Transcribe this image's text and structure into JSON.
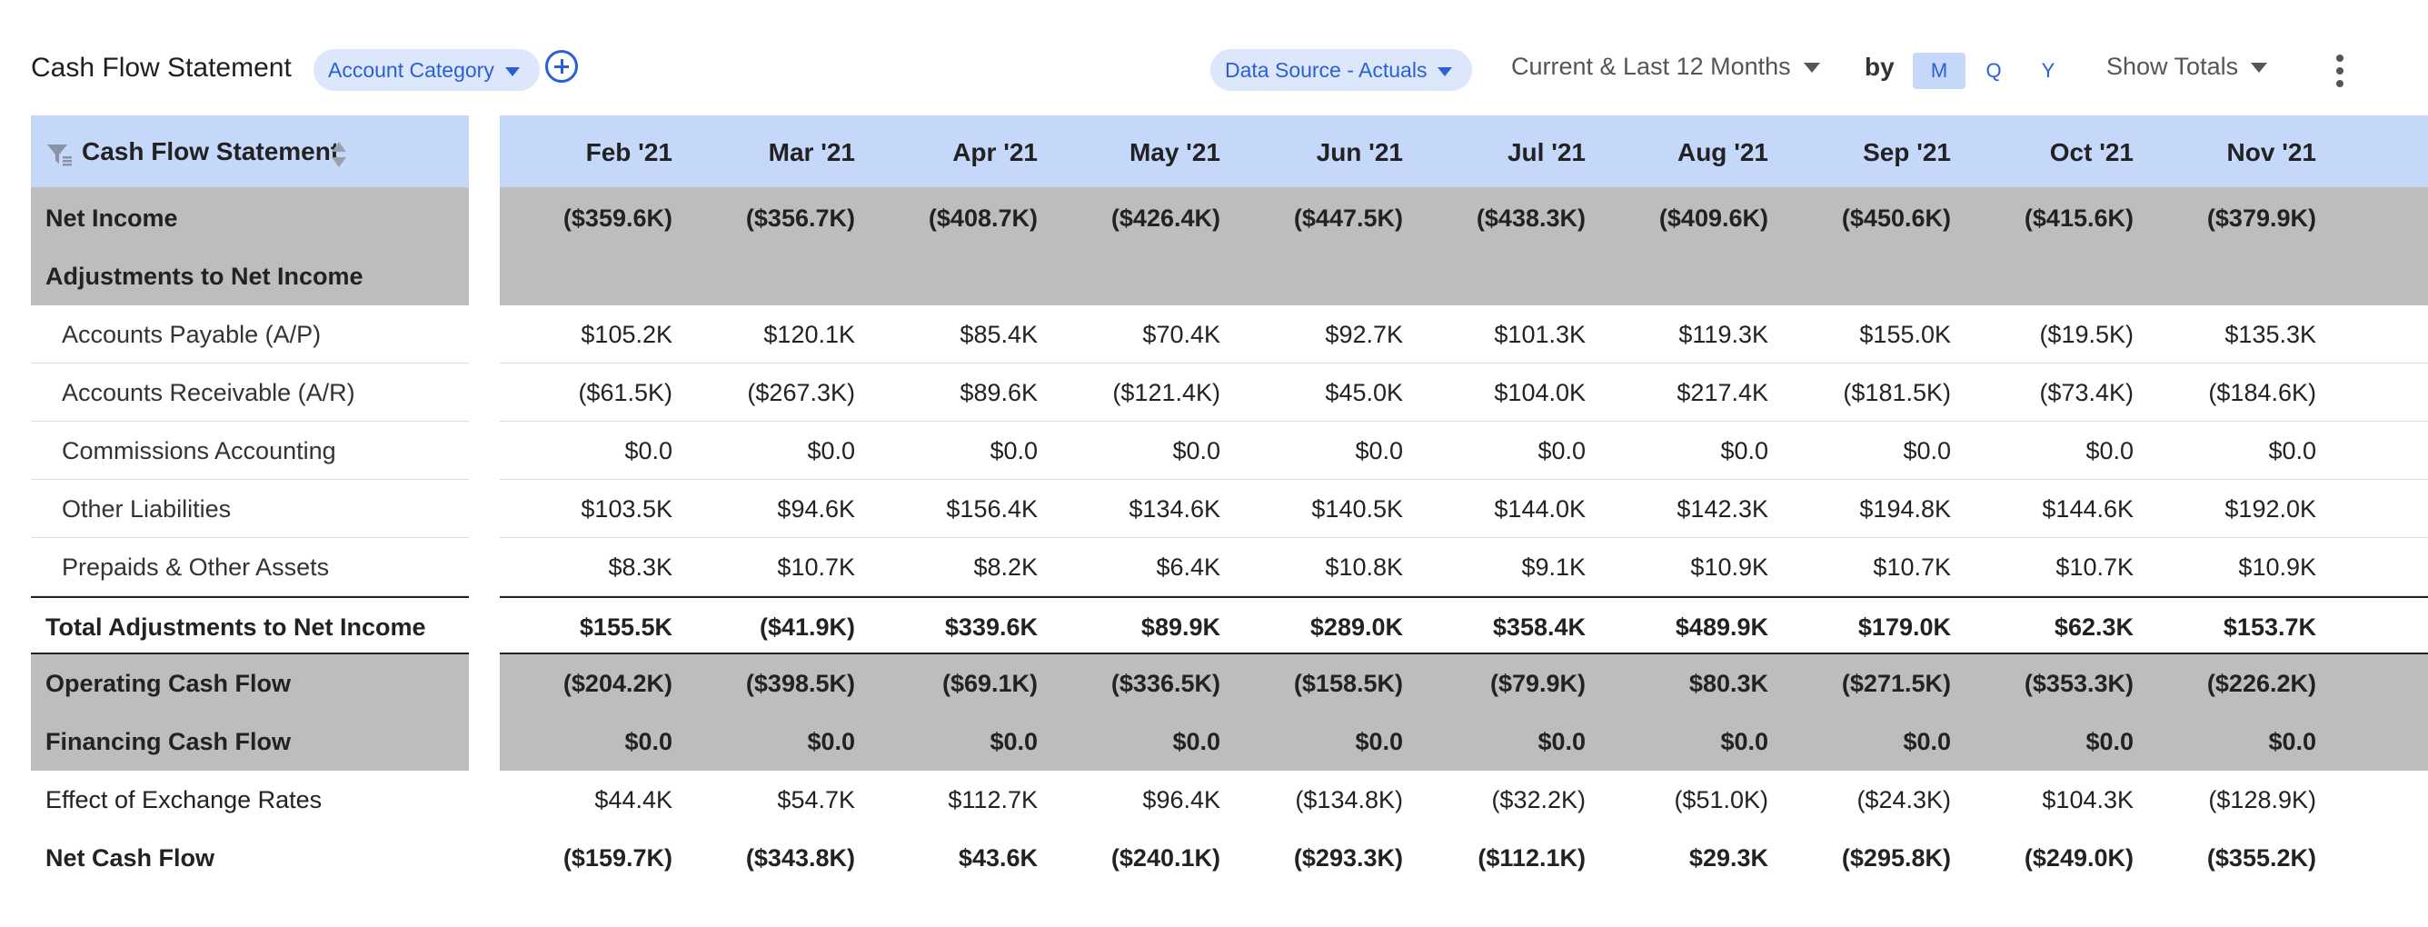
{
  "toolbar": {
    "title": "Cash Flow Statement",
    "category_pill": "Account Category",
    "data_source": "Data Source - Actuals",
    "period": "Current & Last 12 Months",
    "by_label": "by",
    "granularity": [
      "M",
      "Q",
      "Y"
    ],
    "active_granularity": "M",
    "show_totals": "Show Totals",
    "accent_color": "#2a5fd8"
  },
  "table": {
    "header_label": "Cash Flow Statement",
    "months": [
      "Feb '21",
      "Mar '21",
      "Apr '21",
      "May '21",
      "Jun '21",
      "Jul '21",
      "Aug '21",
      "Sep '21",
      "Oct '21",
      "Nov '21"
    ],
    "rows": [
      {
        "label": "Net Income",
        "style": "gray",
        "values": [
          "($359.6K)",
          "($356.7K)",
          "($408.7K)",
          "($426.4K)",
          "($447.5K)",
          "($438.3K)",
          "($409.6K)",
          "($450.6K)",
          "($415.6K)",
          "($379.9K)"
        ]
      },
      {
        "label": "Adjustments to Net Income",
        "style": "gray",
        "values": [
          "",
          "",
          "",
          "",
          "",
          "",
          "",
          "",
          "",
          ""
        ]
      },
      {
        "label": "Accounts Payable (A/P)",
        "style": "child",
        "values": [
          "$105.2K",
          "$120.1K",
          "$85.4K",
          "$70.4K",
          "$92.7K",
          "$101.3K",
          "$119.3K",
          "$155.0K",
          "($19.5K)",
          "$135.3K"
        ]
      },
      {
        "label": "Accounts Receivable (A/R)",
        "style": "child",
        "values": [
          "($61.5K)",
          "($267.3K)",
          "$89.6K",
          "($121.4K)",
          "$45.0K",
          "$104.0K",
          "$217.4K",
          "($181.5K)",
          "($73.4K)",
          "($184.6K)"
        ]
      },
      {
        "label": "Commissions Accounting",
        "style": "child",
        "values": [
          "$0.0",
          "$0.0",
          "$0.0",
          "$0.0",
          "$0.0",
          "$0.0",
          "$0.0",
          "$0.0",
          "$0.0",
          "$0.0"
        ]
      },
      {
        "label": "Other Liabilities",
        "style": "child",
        "values": [
          "$103.5K",
          "$94.6K",
          "$156.4K",
          "$134.6K",
          "$140.5K",
          "$144.0K",
          "$142.3K",
          "$194.8K",
          "$144.6K",
          "$192.0K"
        ]
      },
      {
        "label": "Prepaids & Other Assets",
        "style": "child",
        "values": [
          "$8.3K",
          "$10.7K",
          "$8.2K",
          "$6.4K",
          "$10.8K",
          "$9.1K",
          "$10.9K",
          "$10.7K",
          "$10.7K",
          "$10.9K"
        ]
      },
      {
        "label": "Total Adjustments to Net Income",
        "style": "total",
        "values": [
          "$155.5K",
          "($41.9K)",
          "$339.6K",
          "$89.9K",
          "$289.0K",
          "$358.4K",
          "$489.9K",
          "$179.0K",
          "$62.3K",
          "$153.7K"
        ]
      },
      {
        "label": "Operating Cash Flow",
        "style": "gray",
        "values": [
          "($204.2K)",
          "($398.5K)",
          "($69.1K)",
          "($336.5K)",
          "($158.5K)",
          "($79.9K)",
          "$80.3K",
          "($271.5K)",
          "($353.3K)",
          "($226.2K)"
        ]
      },
      {
        "label": "Financing Cash Flow",
        "style": "gray",
        "values": [
          "$0.0",
          "$0.0",
          "$0.0",
          "$0.0",
          "$0.0",
          "$0.0",
          "$0.0",
          "$0.0",
          "$0.0",
          "$0.0"
        ]
      },
      {
        "label": "Effect of Exchange Rates",
        "style": "plain",
        "values": [
          "$44.4K",
          "$54.7K",
          "$112.7K",
          "$96.4K",
          "($134.8K)",
          "($32.2K)",
          "($51.0K)",
          "($24.3K)",
          "$104.3K",
          "($128.9K)"
        ]
      },
      {
        "label": "Net Cash Flow",
        "style": "bold",
        "values": [
          "($159.7K)",
          "($343.8K)",
          "$43.6K",
          "($240.1K)",
          "($293.3K)",
          "($112.1K)",
          "$29.3K",
          "($295.8K)",
          "($249.0K)",
          "($355.2K)"
        ]
      }
    ]
  }
}
